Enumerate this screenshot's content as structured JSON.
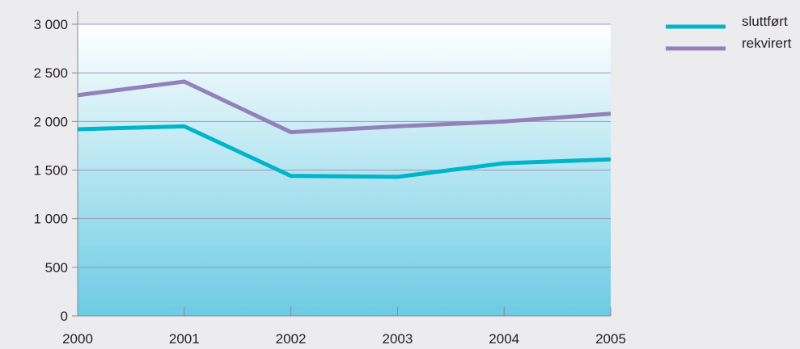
{
  "chart_data": {
    "type": "line",
    "x": [
      "2000",
      "2001",
      "2002",
      "2003",
      "2004",
      "2005"
    ],
    "series": [
      {
        "name": "sluttført",
        "color": "#00b5c9",
        "values": [
          1920,
          1950,
          1440,
          1430,
          1570,
          1610
        ]
      },
      {
        "name": "rekvirert",
        "color": "#9581ba",
        "values": [
          2270,
          2410,
          1890,
          1950,
          2000,
          2080
        ]
      }
    ],
    "y_ticks": [
      0,
      500,
      1000,
      1500,
      2000,
      2500,
      3000
    ],
    "y_tick_labels": [
      "0",
      "500",
      "1 000",
      "1 500",
      "2 000",
      "2 500",
      "3 000"
    ],
    "ylim": [
      0,
      3000
    ],
    "grid": true,
    "legend_position": "top-right",
    "background_gradient": [
      "#ffffff",
      "#6ccbe4"
    ]
  }
}
